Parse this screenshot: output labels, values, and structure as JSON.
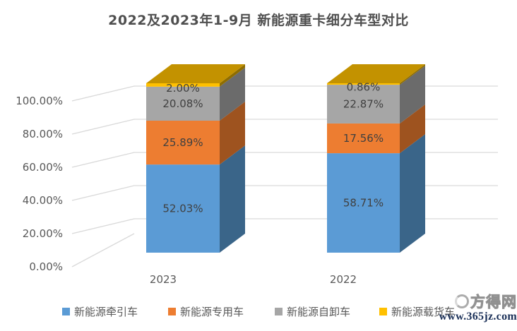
{
  "title": "2022及2023年1-9月 新能源重卡细分车型对比",
  "chart_data": {
    "type": "bar",
    "variant": "3d-stacked-percent-column",
    "title": "2022及2023年1-9月 新能源重卡细分车型对比",
    "categories": [
      "2023",
      "2022"
    ],
    "series": [
      {
        "name": "新能源牵引车",
        "values": [
          52.03,
          58.71
        ],
        "color": "#5B9BD5",
        "side_color": "#3A6589"
      },
      {
        "name": "新能源专用车",
        "values": [
          25.89,
          17.56
        ],
        "color": "#ED7D31",
        "side_color": "#9E531F"
      },
      {
        "name": "新能源自卸车",
        "values": [
          20.08,
          22.87
        ],
        "color": "#A6A6A6",
        "side_color": "#6B6B6B"
      },
      {
        "name": "新能源载货车",
        "values": [
          2.0,
          0.86
        ],
        "color": "#FFC000",
        "side_color": "#8F6D00",
        "top_color": "#C39200"
      }
    ],
    "y_ticks": [
      "0.00%",
      "20.00%",
      "40.00%",
      "60.00%",
      "80.00%",
      "100.00%"
    ],
    "ylim": [
      0,
      100
    ],
    "grid": true,
    "legend_position": "bottom",
    "value_label_format": "0.00%"
  },
  "style": {
    "title_color": "#4F4F4F",
    "axis_text_color": "#595959",
    "value_label_color": "#404040",
    "gridline_color": "#D9D9D9",
    "background": "#FFFFFF"
  },
  "watermark": {
    "site_name": "方得网",
    "url": "www.365jz.com",
    "url_color": "#1B3058"
  }
}
